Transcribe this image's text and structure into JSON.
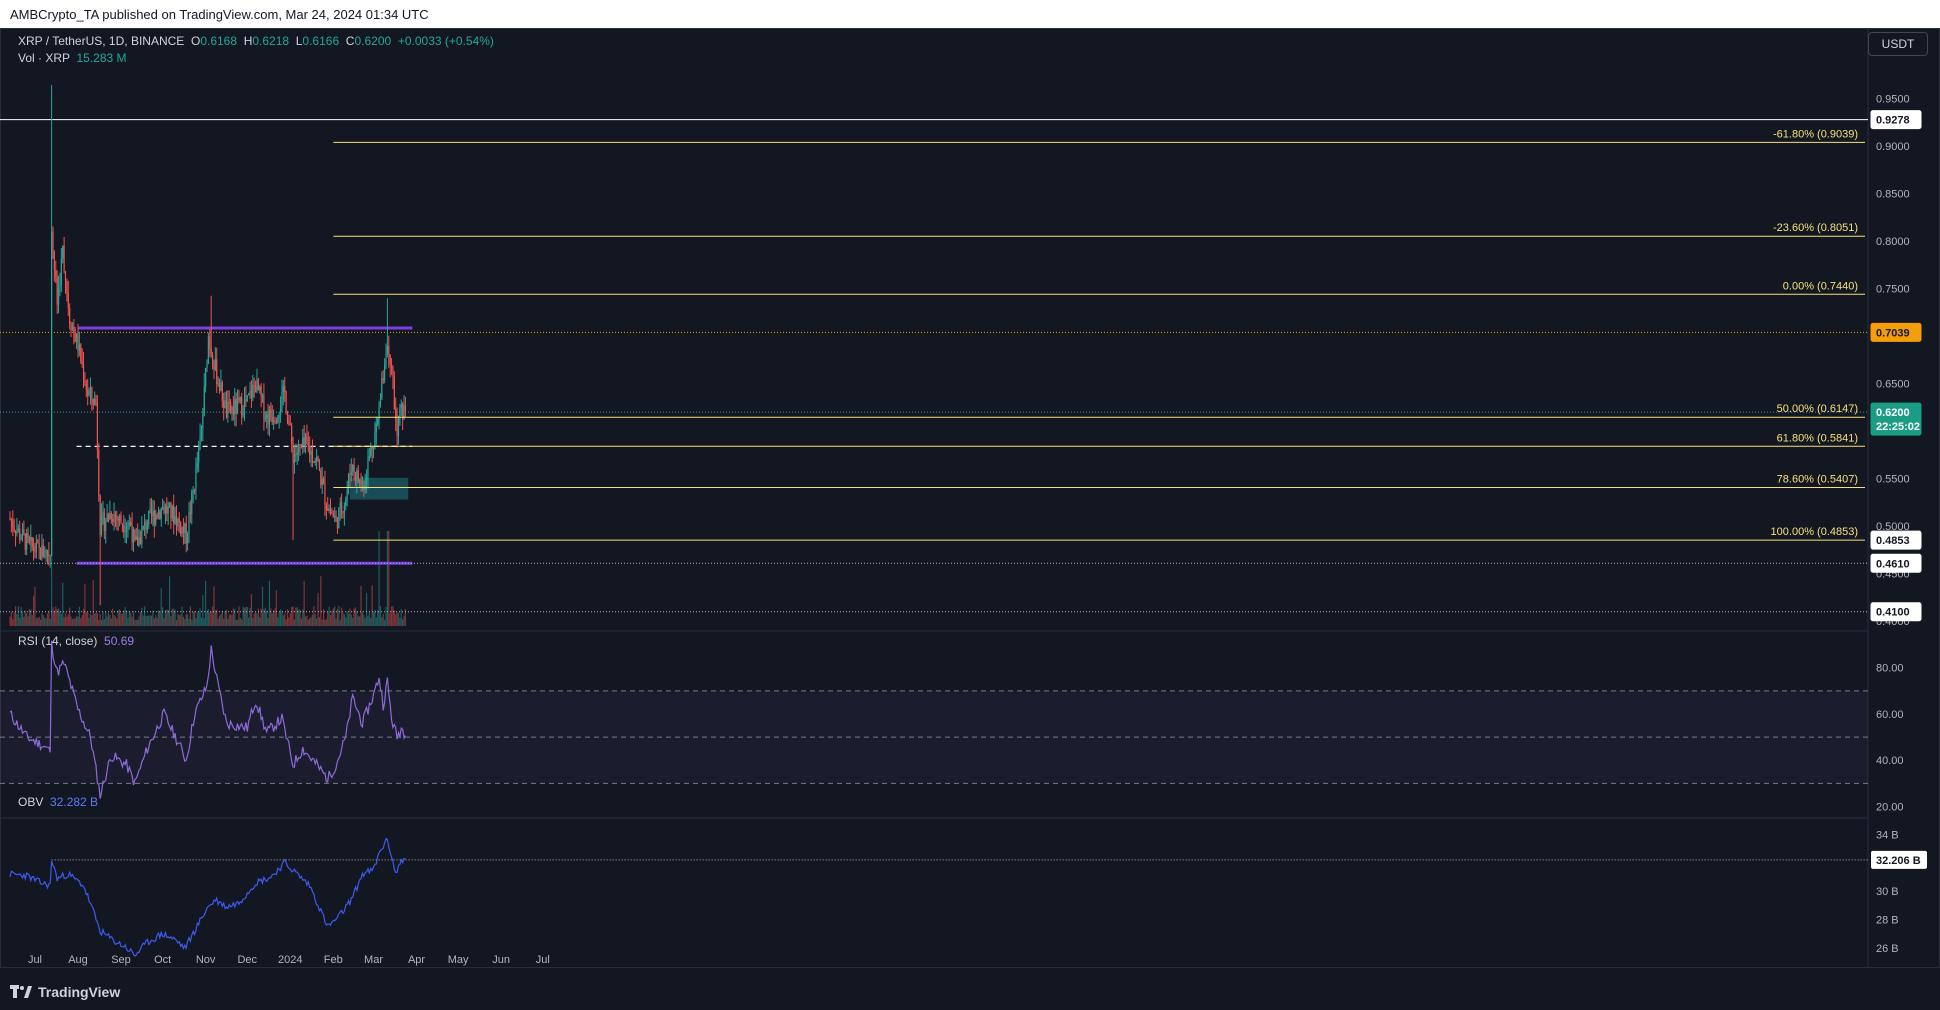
{
  "header": {
    "published": "AMBCrypto_TA published on TradingView.com, Mar 24, 2024 01:34 UTC"
  },
  "legend": {
    "symbol": "XRP / TetherUS, 1D, BINANCE",
    "o_label": "O",
    "o_value": "0.6168",
    "h_label": "H",
    "h_value": "0.6218",
    "l_label": "L",
    "l_value": "0.6166",
    "c_label": "C",
    "c_value": "0.6200",
    "change": "+0.0033 (+0.54%)",
    "vol_label": "Vol · XRP",
    "vol_value": "15.283 M",
    "rsi_label": "RSI (14, close)",
    "rsi_value": "50.69",
    "obv_label": "OBV",
    "obv_value": "32.282 B"
  },
  "currency_button": "USDT",
  "footer": {
    "brand": "TradingView"
  },
  "colors": {
    "bg": "#131722",
    "up": "#26a69a",
    "down": "#ef5350",
    "fib": "#f7e07a",
    "range": "#7b3fe4",
    "rsi": "#7e57c2",
    "obv": "#3c5bf0",
    "orange": "#f59e0b"
  },
  "chart_data": [
    {
      "type": "candlestick",
      "title": "XRP / TetherUS, 1D, BINANCE",
      "x_ticks": [
        "Jul",
        "Aug",
        "Sep",
        "Oct",
        "Nov",
        "Dec",
        "2024",
        "Feb",
        "Mar",
        "Apr",
        "May",
        "Jun",
        "Jul"
      ],
      "y_ticks": [
        "0.9500",
        "0.9000",
        "0.8500",
        "0.8000",
        "0.7500",
        "0.6500",
        "0.5500",
        "0.5000",
        "0.4500",
        "0.4000"
      ],
      "ylim": [
        0.395,
        0.98
      ],
      "price_tags": [
        {
          "label": "0.9278",
          "value": 0.9278,
          "style": "white"
        },
        {
          "label": "0.7039",
          "value": 0.7039,
          "style": "orange"
        },
        {
          "label": "0.6200",
          "value": 0.62,
          "style": "green",
          "countdown": "22:25:02"
        },
        {
          "label": "0.4853",
          "value": 0.4853,
          "style": "white"
        },
        {
          "label": "0.4610",
          "value": 0.461,
          "style": "white"
        },
        {
          "label": "0.4100",
          "value": 0.41,
          "style": "white"
        }
      ],
      "fib_levels": [
        {
          "label": "-61.80% (0.9039)",
          "value": 0.9039
        },
        {
          "label": "-23.60% (0.8051)",
          "value": 0.8051
        },
        {
          "label": "0.00% (0.7440)",
          "value": 0.744
        },
        {
          "label": "50.00% (0.6147)",
          "value": 0.6147
        },
        {
          "label": "61.80% (0.5841)",
          "value": 0.5841
        },
        {
          "label": "78.60% (0.5407)",
          "value": 0.5407
        },
        {
          "label": "100.00% (0.4853)",
          "value": 0.4853
        }
      ],
      "horizontal_lines": [
        {
          "name": "range-high",
          "value": 0.7085
        },
        {
          "name": "range-low",
          "value": 0.461
        },
        {
          "name": "mid-range-dashed",
          "value": 0.584
        },
        {
          "name": "level-0.9278",
          "value": 0.9278
        },
        {
          "name": "level-0.7039-dotted",
          "value": 0.7039
        },
        {
          "name": "level-0.4100-dotted",
          "value": 0.41
        }
      ],
      "demand_zone": {
        "low": 0.528,
        "high": 0.551,
        "from": "2024-02-13",
        "to": "2024-03-26"
      },
      "series_close_anchors": [
        [
          "2023-06-13",
          0.508
        ],
        [
          "2023-06-20",
          0.492
        ],
        [
          "2023-06-27",
          0.479
        ],
        [
          "2023-07-04",
          0.473
        ],
        [
          "2023-07-12",
          0.472
        ],
        [
          "2023-07-13",
          0.817
        ],
        [
          "2023-07-14",
          0.79
        ],
        [
          "2023-07-17",
          0.735
        ],
        [
          "2023-07-21",
          0.79
        ],
        [
          "2023-07-26",
          0.72
        ],
        [
          "2023-08-01",
          0.69
        ],
        [
          "2023-08-08",
          0.64
        ],
        [
          "2023-08-14",
          0.63
        ],
        [
          "2023-08-17",
          0.5
        ],
        [
          "2023-08-25",
          0.515
        ],
        [
          "2023-09-01",
          0.505
        ],
        [
          "2023-09-08",
          0.502
        ],
        [
          "2023-09-11",
          0.478
        ],
        [
          "2023-09-20",
          0.505
        ],
        [
          "2023-10-01",
          0.52
        ],
        [
          "2023-10-10",
          0.51
        ],
        [
          "2023-10-18",
          0.49
        ],
        [
          "2023-10-24",
          0.545
        ],
        [
          "2023-10-29",
          0.6
        ],
        [
          "2023-11-03",
          0.7
        ],
        [
          "2023-11-08",
          0.665
        ],
        [
          "2023-11-16",
          0.62
        ],
        [
          "2023-12-01",
          0.63
        ],
        [
          "2023-12-07",
          0.65
        ],
        [
          "2023-12-15",
          0.615
        ],
        [
          "2023-12-22",
          0.62
        ],
        [
          "2023-12-28",
          0.64
        ],
        [
          "2024-01-03",
          0.575
        ],
        [
          "2024-01-12",
          0.585
        ],
        [
          "2024-01-20",
          0.57
        ],
        [
          "2024-01-27",
          0.525
        ],
        [
          "2024-02-03",
          0.505
        ],
        [
          "2024-02-10",
          0.53
        ],
        [
          "2024-02-14",
          0.565
        ],
        [
          "2024-02-22",
          0.54
        ],
        [
          "2024-02-28",
          0.58
        ],
        [
          "2024-03-04",
          0.61
        ],
        [
          "2024-03-11",
          0.7
        ],
        [
          "2024-03-14",
          0.67
        ],
        [
          "2024-03-18",
          0.59
        ],
        [
          "2024-03-20",
          0.62
        ],
        [
          "2024-03-24",
          0.62
        ]
      ]
    },
    {
      "type": "bar",
      "title": "Vol · XRP",
      "description_value": "15.283 M"
    },
    {
      "type": "line",
      "title": "RSI (14, close)",
      "last_value": 50.69,
      "y_ticks": [
        "80.00",
        "60.00",
        "40.00",
        "20.00"
      ],
      "ylim": [
        15,
        92
      ],
      "bands": {
        "upper": 70,
        "middle": 50,
        "lower": 30
      },
      "anchors": [
        [
          "2023-06-13",
          60
        ],
        [
          "2023-06-25",
          50
        ],
        [
          "2023-07-05",
          47
        ],
        [
          "2023-07-12",
          44
        ],
        [
          "2023-07-13",
          90
        ],
        [
          "2023-07-17",
          78
        ],
        [
          "2023-07-22",
          82
        ],
        [
          "2023-08-01",
          62
        ],
        [
          "2023-08-10",
          50
        ],
        [
          "2023-08-17",
          25
        ],
        [
          "2023-08-25",
          42
        ],
        [
          "2023-09-05",
          38
        ],
        [
          "2023-09-11",
          30
        ],
        [
          "2023-09-20",
          45
        ],
        [
          "2023-10-02",
          60
        ],
        [
          "2023-10-12",
          48
        ],
        [
          "2023-10-18",
          40
        ],
        [
          "2023-10-24",
          60
        ],
        [
          "2023-11-02",
          72
        ],
        [
          "2023-11-05",
          88
        ],
        [
          "2023-11-10",
          72
        ],
        [
          "2023-11-16",
          56
        ],
        [
          "2023-12-01",
          54
        ],
        [
          "2023-12-07",
          66
        ],
        [
          "2023-12-15",
          52
        ],
        [
          "2023-12-26",
          58
        ],
        [
          "2024-01-03",
          38
        ],
        [
          "2024-01-10",
          45
        ],
        [
          "2024-01-20",
          38
        ],
        [
          "2024-01-28",
          32
        ],
        [
          "2024-02-03",
          38
        ],
        [
          "2024-02-10",
          50
        ],
        [
          "2024-02-15",
          67
        ],
        [
          "2024-02-22",
          56
        ],
        [
          "2024-03-01",
          68
        ],
        [
          "2024-03-05",
          76
        ],
        [
          "2024-03-08",
          64
        ],
        [
          "2024-03-11",
          74
        ],
        [
          "2024-03-14",
          58
        ],
        [
          "2024-03-18",
          50
        ],
        [
          "2024-03-21",
          54
        ],
        [
          "2024-03-24",
          51
        ]
      ]
    },
    {
      "type": "line",
      "title": "OBV",
      "last_value": "32.282 B",
      "y_ticks": [
        "34 B",
        "30 B",
        "28 B",
        "26 B"
      ],
      "ylim": [
        24.6,
        34.8
      ],
      "reference_line": {
        "label": "32.206 B",
        "value": 32.206
      },
      "anchors": [
        [
          "2023-06-13",
          31.2
        ],
        [
          "2023-06-25",
          31.1
        ],
        [
          "2023-07-05",
          30.6
        ],
        [
          "2023-07-12",
          30.4
        ],
        [
          "2023-07-13",
          32.2
        ],
        [
          "2023-07-17",
          30.9
        ],
        [
          "2023-07-25",
          31.2
        ],
        [
          "2023-08-05",
          30.4
        ],
        [
          "2023-08-12",
          28.6
        ],
        [
          "2023-08-17",
          27.2
        ],
        [
          "2023-08-27",
          26.5
        ],
        [
          "2023-09-04",
          26.1
        ],
        [
          "2023-09-11",
          25.5
        ],
        [
          "2023-09-20",
          26.4
        ],
        [
          "2023-10-01",
          27.0
        ],
        [
          "2023-10-10",
          26.6
        ],
        [
          "2023-10-17",
          26.0
        ],
        [
          "2023-10-24",
          27.2
        ],
        [
          "2023-11-02",
          28.8
        ],
        [
          "2023-11-08",
          29.4
        ],
        [
          "2023-11-16",
          28.9
        ],
        [
          "2023-11-25",
          29.2
        ],
        [
          "2023-12-07",
          30.6
        ],
        [
          "2023-12-18",
          31.0
        ],
        [
          "2023-12-28",
          32.0
        ],
        [
          "2024-01-05",
          31.3
        ],
        [
          "2024-01-15",
          30.4
        ],
        [
          "2024-01-28",
          27.5
        ],
        [
          "2024-02-05",
          28.2
        ],
        [
          "2024-02-14",
          29.4
        ],
        [
          "2024-02-22",
          31.2
        ],
        [
          "2024-03-01",
          31.5
        ],
        [
          "2024-03-06",
          32.9
        ],
        [
          "2024-03-11",
          33.6
        ],
        [
          "2024-03-14",
          32.5
        ],
        [
          "2024-03-17",
          31.2
        ],
        [
          "2024-03-21",
          32.2
        ],
        [
          "2024-03-24",
          32.3
        ]
      ]
    }
  ]
}
